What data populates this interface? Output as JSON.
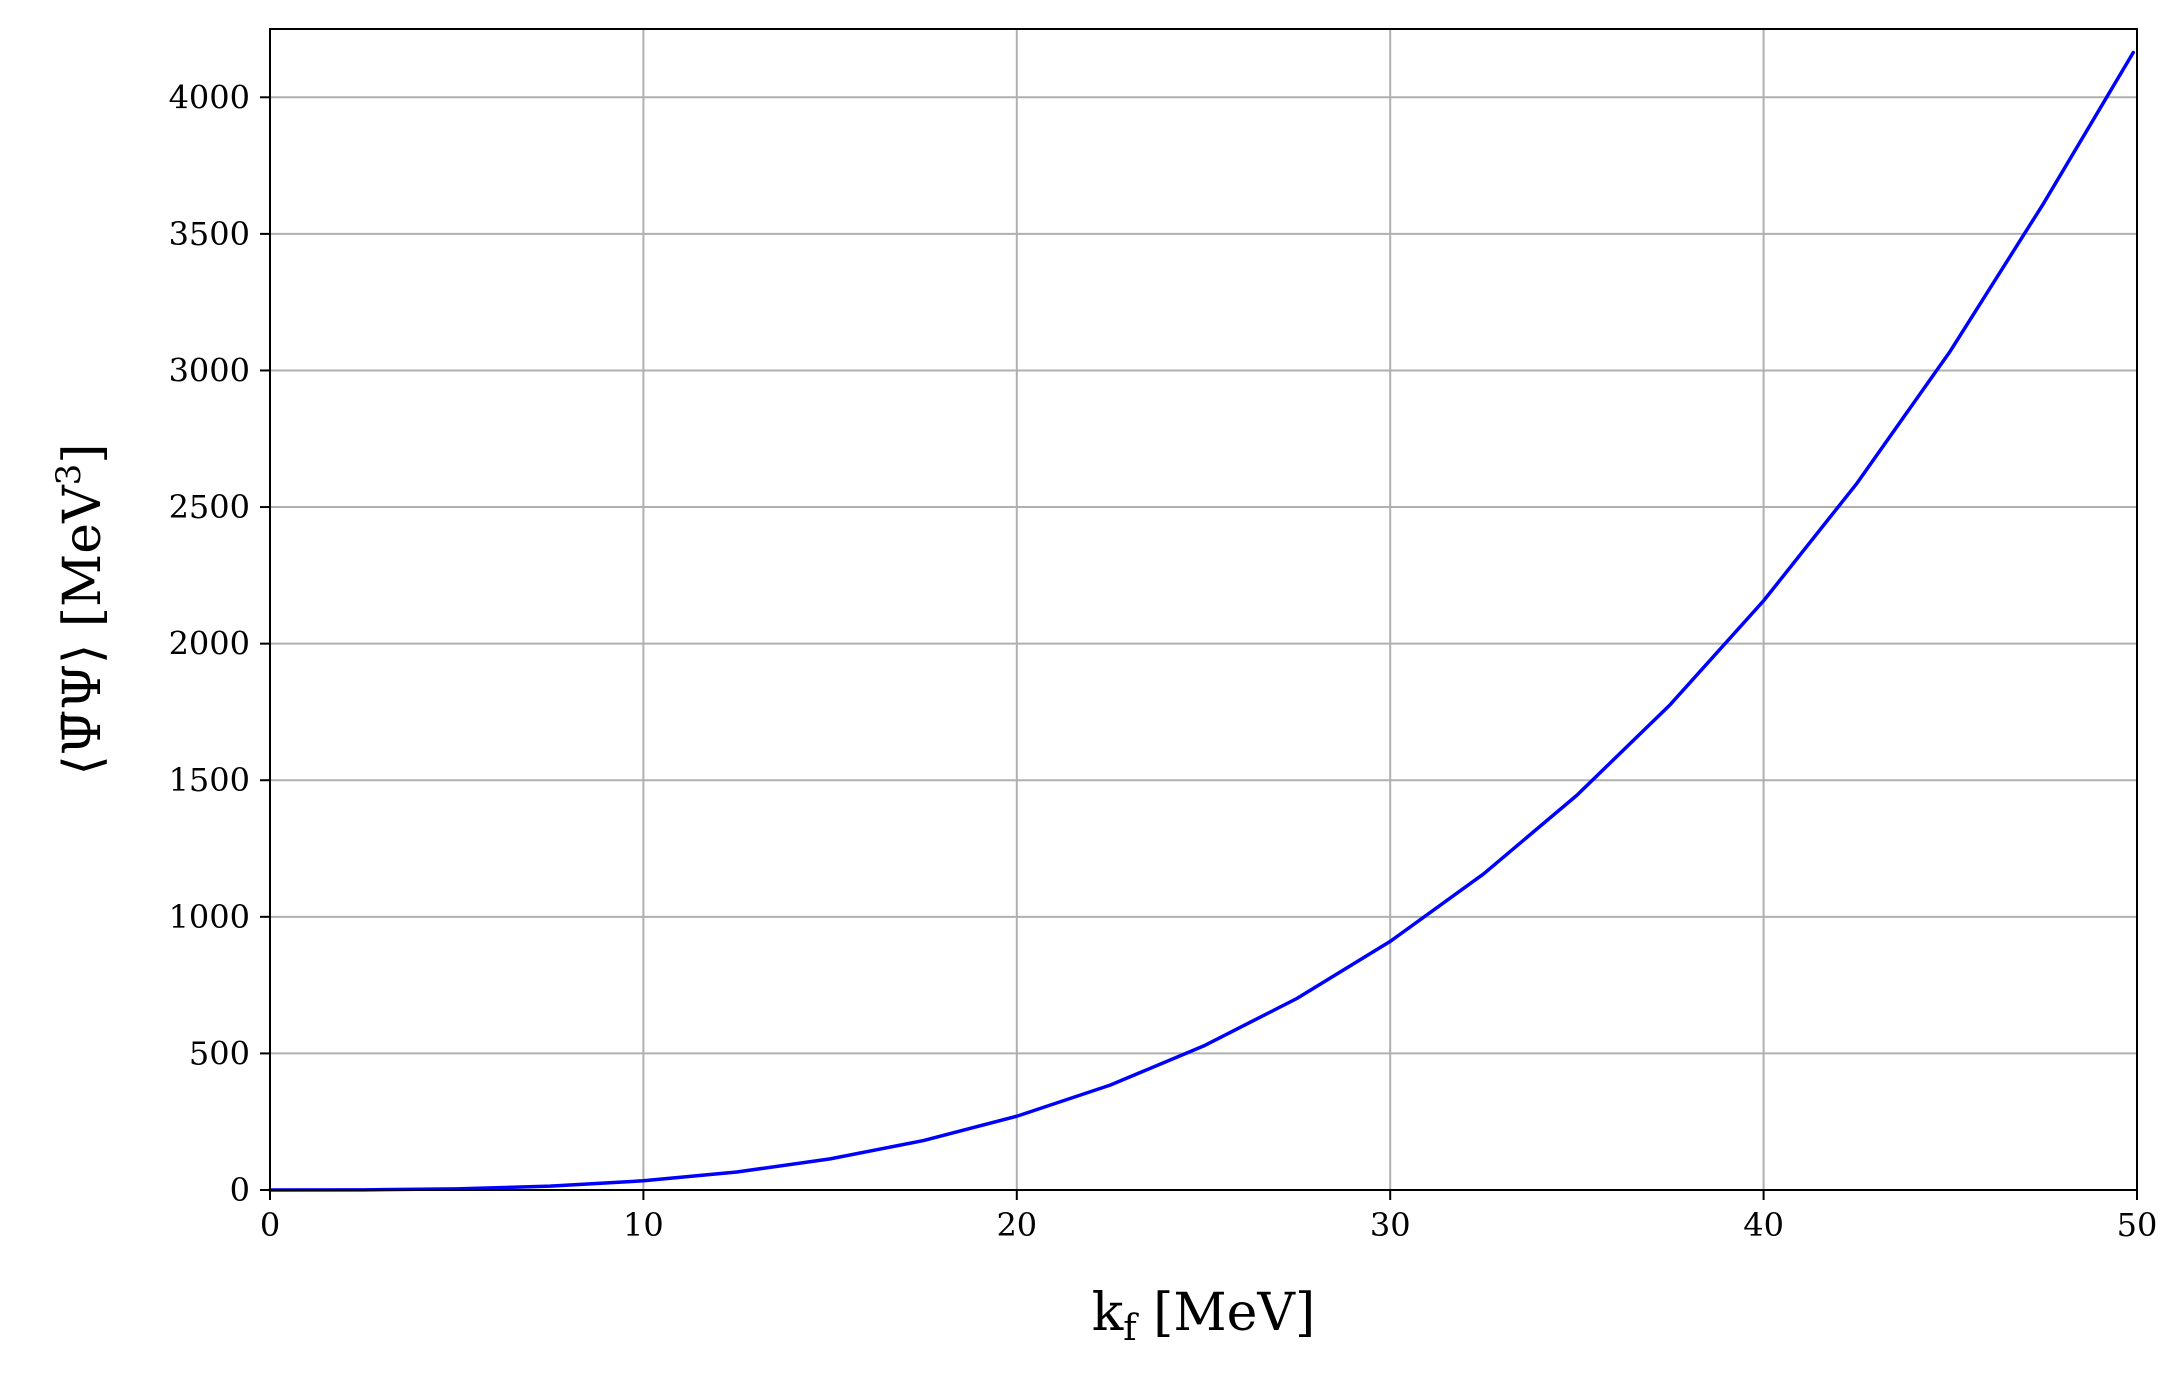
{
  "chart_data": {
    "type": "line",
    "title": "",
    "xlabel": "k_f [MeV]",
    "ylabel": "⟨Ψ̄Ψ⟩ [MeV^3]",
    "xlabel_parts": {
      "main": "k",
      "sub": "f",
      "rest": " [MeV]"
    },
    "ylabel_parts": {
      "main": "⟨Ψ̄Ψ⟩ [MeV",
      "sup": "3",
      "rest": "]"
    },
    "xlim": [
      0,
      50
    ],
    "ylim": [
      0,
      4250
    ],
    "xticks": [
      0,
      10,
      20,
      30,
      40,
      50
    ],
    "yticks": [
      0,
      500,
      1000,
      1500,
      2000,
      2500,
      3000,
      3500,
      4000
    ],
    "grid": true,
    "legend": "none",
    "series": [
      {
        "color": "#0000ff",
        "x": [
          0,
          2.5,
          5,
          7.5,
          10,
          12.5,
          15,
          17.5,
          20,
          22.5,
          25,
          27.5,
          30,
          32.5,
          35,
          37.5,
          40,
          42.5,
          45,
          47.5,
          49.9
        ],
        "y": [
          0,
          0.5,
          4.2,
          14.2,
          33.7,
          65.8,
          114,
          181,
          270,
          384,
          527,
          701,
          910,
          1157,
          1445,
          1777,
          2157,
          2587,
          3071,
          3612,
          4164
        ]
      }
    ]
  }
}
